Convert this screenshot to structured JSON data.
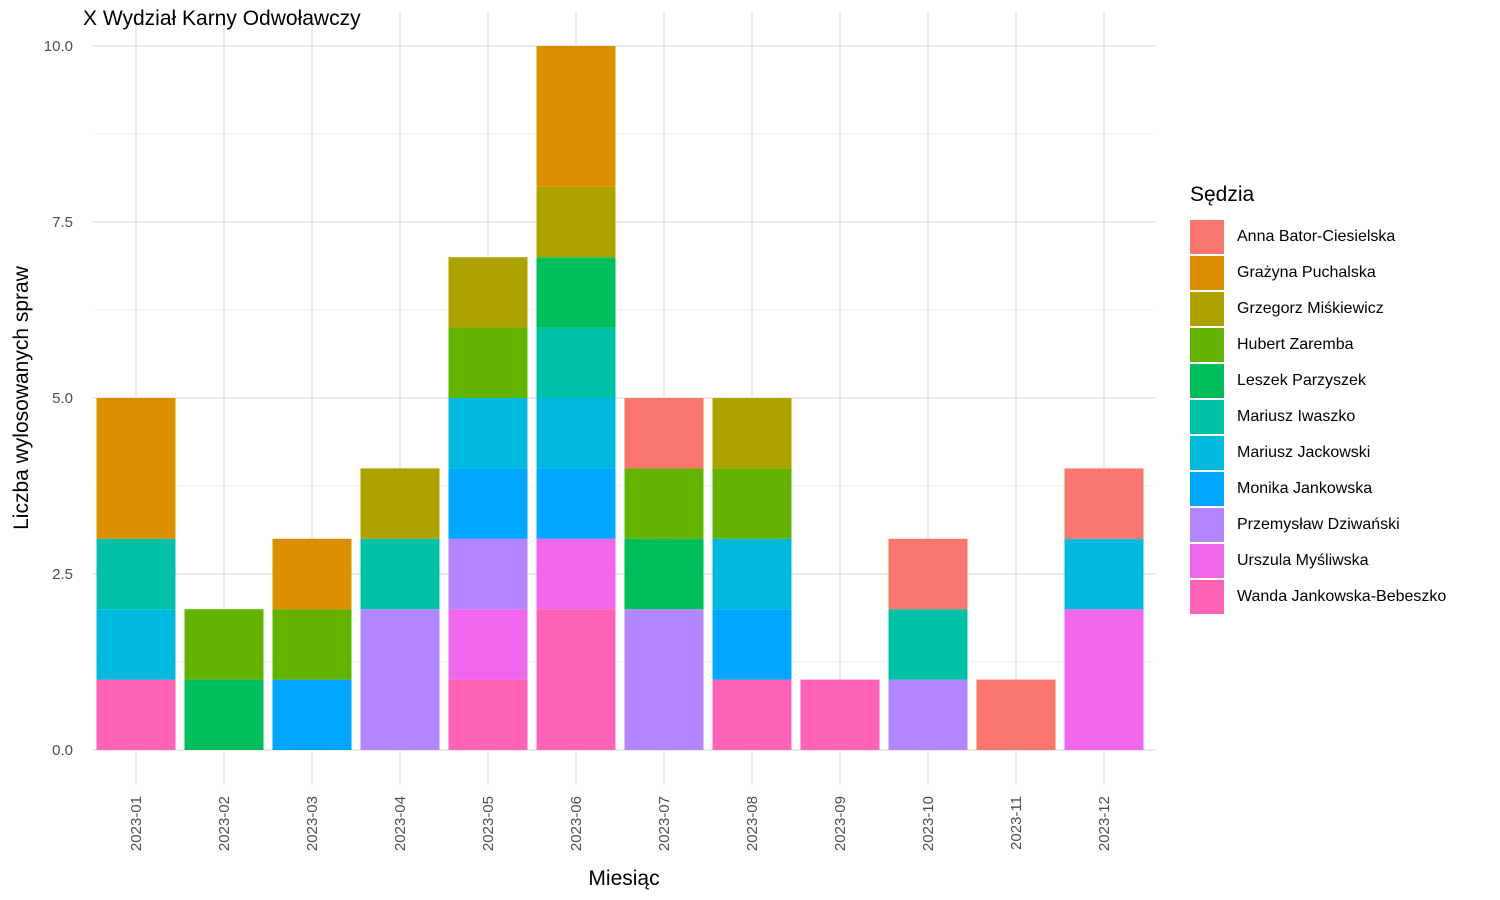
{
  "chart_data": {
    "type": "bar",
    "stacked": true,
    "title": "X Wydział Karny Odwoławczy",
    "xlabel": "Miesiąc",
    "ylabel": "Liczba wylosowanych spraw",
    "legend_title": "Sędzia",
    "legend_position": "right",
    "grid": true,
    "ylim": [
      0,
      10
    ],
    "yticks": [
      "0.0",
      "2.5",
      "5.0",
      "7.5",
      "10.0"
    ],
    "categories": [
      "2023-01",
      "2023-02",
      "2023-03",
      "2023-04",
      "2023-05",
      "2023-06",
      "2023-07",
      "2023-08",
      "2023-09",
      "2023-10",
      "2023-11",
      "2023-12"
    ],
    "series": [
      {
        "name": "Anna Bator-Ciesielska",
        "color": "#F8766D",
        "values": [
          0,
          0,
          0,
          0,
          0,
          0,
          1,
          0,
          0,
          1,
          1,
          1
        ]
      },
      {
        "name": "Grażyna Puchalska",
        "color": "#DB8E00",
        "values": [
          2,
          0,
          1,
          0,
          0,
          2,
          0,
          0,
          0,
          0,
          0,
          0
        ]
      },
      {
        "name": "Grzegorz Miśkiewicz",
        "color": "#AEA200",
        "values": [
          0,
          0,
          0,
          1,
          1,
          1,
          0,
          1,
          0,
          0,
          0,
          0
        ]
      },
      {
        "name": "Hubert Zaremba",
        "color": "#64B200",
        "values": [
          0,
          1,
          1,
          0,
          1,
          0,
          1,
          1,
          0,
          0,
          0,
          0
        ]
      },
      {
        "name": "Leszek Parzyszek",
        "color": "#00BD5C",
        "values": [
          0,
          1,
          0,
          0,
          0,
          1,
          1,
          0,
          0,
          0,
          0,
          0
        ]
      },
      {
        "name": "Mariusz Iwaszko",
        "color": "#00C1A7",
        "values": [
          1,
          0,
          0,
          1,
          0,
          1,
          0,
          0,
          0,
          1,
          0,
          0
        ]
      },
      {
        "name": "Mariusz Jackowski",
        "color": "#00BADE",
        "values": [
          1,
          0,
          0,
          0,
          1,
          1,
          0,
          1,
          0,
          0,
          0,
          1
        ]
      },
      {
        "name": "Monika Jankowska",
        "color": "#00A6FF",
        "values": [
          0,
          0,
          1,
          0,
          1,
          1,
          0,
          1,
          0,
          0,
          0,
          0
        ]
      },
      {
        "name": "Przemysław Dziwański",
        "color": "#B385FF",
        "values": [
          0,
          0,
          0,
          2,
          1,
          0,
          2,
          0,
          0,
          1,
          0,
          0
        ]
      },
      {
        "name": "Urszula Myśliwska",
        "color": "#EF67EB",
        "values": [
          0,
          0,
          0,
          0,
          1,
          1,
          0,
          0,
          0,
          0,
          0,
          2
        ]
      },
      {
        "name": "Wanda Jankowska-Bebeszko",
        "color": "#FF63B6",
        "values": [
          1,
          0,
          0,
          0,
          1,
          2,
          0,
          1,
          1,
          0,
          0,
          0
        ]
      }
    ]
  }
}
